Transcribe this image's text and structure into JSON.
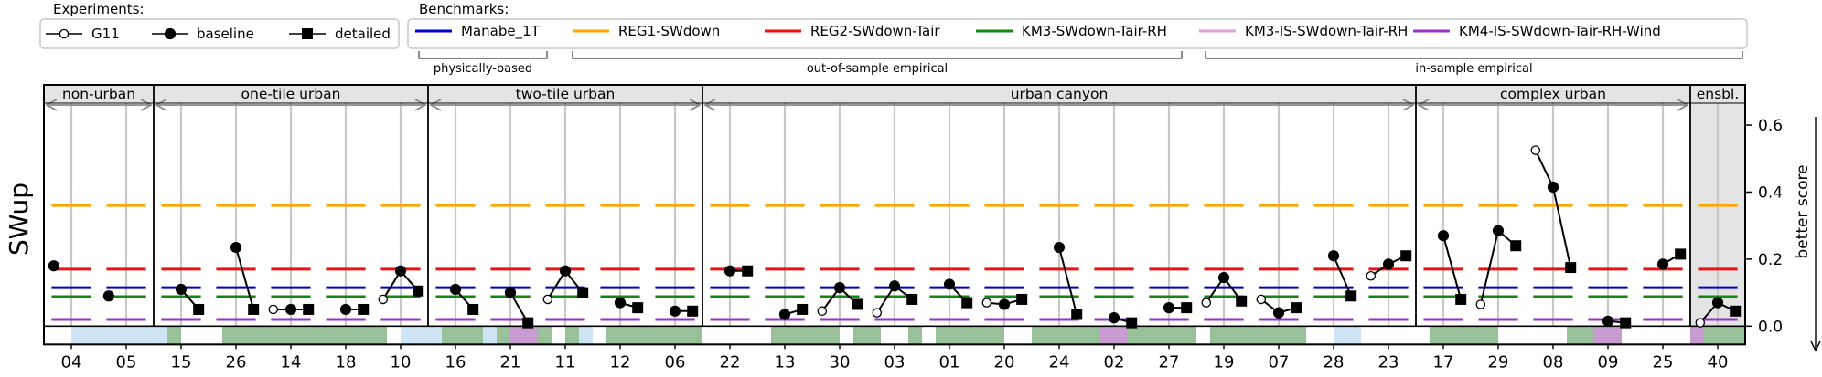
{
  "legends": {
    "experiments": {
      "title": "Experiments:",
      "entries": [
        {
          "label": "G11",
          "marker": "open-circle"
        },
        {
          "label": "baseline",
          "marker": "filled-circle"
        },
        {
          "label": "detailed",
          "marker": "filled-square"
        }
      ]
    },
    "benchmarks": {
      "title": "Benchmarks:",
      "entries": [
        {
          "label": "Manabe_1T",
          "color": "#0000cc"
        },
        {
          "label": "REG1-SWdown",
          "color": "#ffa500"
        },
        {
          "label": "REG2-SWdown-Tair",
          "color": "#ee1111"
        },
        {
          "label": "KM3-SWdown-Tair-RH",
          "color": "#118811"
        },
        {
          "label": "KM3-IS-SWdown-Tair-RH",
          "color": "#dda0dd"
        },
        {
          "label": "KM4-IS-SWdown-Tair-RH-Wind",
          "color": "#9932cc"
        }
      ],
      "brackets": [
        "physically-based",
        "out-of-sample empirical",
        "in-sample empirical"
      ]
    }
  },
  "chart_data": {
    "type": "line",
    "ylabel": "SWup",
    "right_label": "better score",
    "ylim": [
      -0.04,
      0.72
    ],
    "yticks": [
      0.0,
      0.2,
      0.4,
      0.6
    ],
    "ytick_labels": [
      "0.0",
      "0.2",
      "0.4",
      "0.6"
    ],
    "benchmark_levels": [
      {
        "name": "REG1-SWdown",
        "value": 0.36,
        "color": "#ffa500"
      },
      {
        "name": "REG2-SWdown-Tair",
        "value": 0.17,
        "color": "#ee1111"
      },
      {
        "name": "Manabe_1T",
        "value": 0.115,
        "color": "#0000cc"
      },
      {
        "name": "KM3-SWdown-Tair-RH",
        "value": 0.088,
        "color": "#118811"
      },
      {
        "name": "KM4-IS-SWdown-Tair-RH-Wind",
        "value": 0.02,
        "color": "#9932cc"
      }
    ],
    "groups": [
      {
        "label": "non-urban",
        "count": 2
      },
      {
        "label": "one-tile urban",
        "count": 5
      },
      {
        "label": "two-tile urban",
        "count": 5
      },
      {
        "label": "urban canyon",
        "count": 13
      },
      {
        "label": "complex urban",
        "count": 5
      },
      {
        "label": "ensbl.",
        "count": 1
      }
    ],
    "sites": [
      {
        "label": "04",
        "baseline": 0.18
      },
      {
        "label": "05",
        "baseline": 0.09
      },
      {
        "label": "15",
        "baseline": 0.11,
        "detailed": 0.05
      },
      {
        "label": "26",
        "baseline": 0.235,
        "detailed": 0.05
      },
      {
        "label": "14",
        "G11": 0.05,
        "baseline": 0.05,
        "detailed": 0.05
      },
      {
        "label": "18",
        "baseline": 0.05,
        "detailed": 0.05
      },
      {
        "label": "10",
        "G11": 0.08,
        "baseline": 0.165,
        "detailed": 0.105
      },
      {
        "label": "16",
        "baseline": 0.11,
        "detailed": 0.05
      },
      {
        "label": "21",
        "baseline": 0.1,
        "detailed": 0.01
      },
      {
        "label": "11",
        "G11": 0.08,
        "baseline": 0.165,
        "detailed": 0.1
      },
      {
        "label": "12",
        "baseline": 0.07,
        "detailed": 0.055
      },
      {
        "label": "06",
        "baseline": 0.045,
        "detailed": 0.045
      },
      {
        "label": "22",
        "baseline": 0.165,
        "detailed": 0.165
      },
      {
        "label": "13",
        "baseline": 0.035,
        "detailed": 0.05
      },
      {
        "label": "30",
        "G11": 0.045,
        "baseline": 0.115,
        "detailed": 0.065
      },
      {
        "label": "03",
        "G11": 0.04,
        "baseline": 0.12,
        "detailed": 0.08
      },
      {
        "label": "01",
        "baseline": 0.125,
        "detailed": 0.07
      },
      {
        "label": "20",
        "G11": 0.07,
        "baseline": 0.065,
        "detailed": 0.08
      },
      {
        "label": "24",
        "baseline": 0.235,
        "detailed": 0.035
      },
      {
        "label": "02",
        "baseline": 0.025,
        "detailed": 0.01
      },
      {
        "label": "27",
        "baseline": 0.055,
        "detailed": 0.055
      },
      {
        "label": "19",
        "G11": 0.07,
        "baseline": 0.145,
        "detailed": 0.075
      },
      {
        "label": "07",
        "G11": 0.08,
        "baseline": 0.04,
        "detailed": 0.055
      },
      {
        "label": "28",
        "baseline": 0.21,
        "detailed": 0.09
      },
      {
        "label": "23",
        "G11": 0.15,
        "baseline": 0.185,
        "detailed": 0.21
      },
      {
        "label": "17",
        "baseline": 0.27,
        "detailed": 0.08
      },
      {
        "label": "29",
        "G11": 0.065,
        "baseline": 0.285,
        "detailed": 0.24
      },
      {
        "label": "08",
        "G11": 0.525,
        "baseline": 0.415,
        "detailed": 0.175
      },
      {
        "label": "09",
        "baseline": 0.015,
        "detailed": 0.01
      },
      {
        "label": "25",
        "baseline": 0.185,
        "detailed": 0.215
      },
      {
        "label": "40",
        "G11": 0.01,
        "baseline": 0.07,
        "detailed": 0.045
      }
    ],
    "strip": {
      "colors": {
        "blue": "#cfe5f5",
        "green": "#99c199",
        "purple": "#c89bd3"
      },
      "segments": [
        [
          "w",
          "w",
          "b",
          "b"
        ],
        [
          "b",
          "b",
          "b",
          "b"
        ],
        [
          "b",
          "g",
          "w",
          "w"
        ],
        [
          "w",
          "g",
          "g",
          "g"
        ],
        [
          "g",
          "g",
          "g",
          "g"
        ],
        [
          "g",
          "g",
          "g",
          "g"
        ],
        [
          "g",
          "w",
          "b",
          "b"
        ],
        [
          "b",
          "g",
          "g",
          "g"
        ],
        [
          "b",
          "g",
          "p",
          "p"
        ],
        [
          "g",
          "w",
          "g",
          "b"
        ],
        [
          "w",
          "g",
          "g",
          "g"
        ],
        [
          "g",
          "g",
          "g",
          "g"
        ],
        [
          "w",
          "w",
          "w",
          "w"
        ],
        [
          "w",
          "g",
          "g",
          "g"
        ],
        [
          "g",
          "g",
          "w",
          "g"
        ],
        [
          "g",
          "w",
          "w",
          "g"
        ],
        [
          "w",
          "g",
          "g",
          "g"
        ],
        [
          "g",
          "g",
          "w",
          "w"
        ],
        [
          "g",
          "g",
          "g",
          "g"
        ],
        [
          "g",
          "p",
          "p",
          "g"
        ],
        [
          "g",
          "g",
          "g",
          "g"
        ],
        [
          "w",
          "g",
          "g",
          "g"
        ],
        [
          "g",
          "g",
          "g",
          "g"
        ],
        [
          "w",
          "w",
          "b",
          "b"
        ],
        [
          "w",
          "w",
          "w",
          "w"
        ],
        [
          "w",
          "g",
          "g",
          "g"
        ],
        [
          "g",
          "g",
          "w",
          "w"
        ],
        [
          "w",
          "w",
          "w",
          "g"
        ],
        [
          "g",
          "p",
          "p",
          "w"
        ],
        [
          "w",
          "w",
          "w",
          "w"
        ],
        [
          "p",
          "g",
          "g",
          "g"
        ]
      ]
    }
  }
}
